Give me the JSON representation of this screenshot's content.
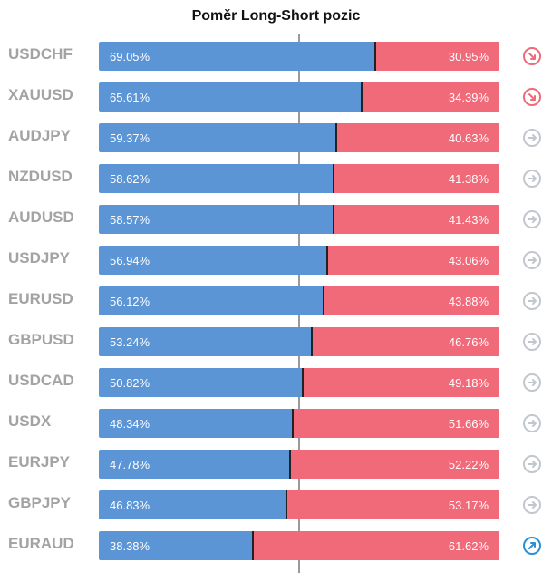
{
  "chart_data": {
    "type": "bar",
    "title": "Poměr Long-Short pozic",
    "categories": [
      "USDCHF",
      "XAUUSD",
      "AUDJPY",
      "NZDUSD",
      "AUDUSD",
      "USDJPY",
      "EURUSD",
      "GBPUSD",
      "USDCAD",
      "USDX",
      "EURJPY",
      "GBPJPY",
      "EURAUD"
    ],
    "series": [
      {
        "values": [
          69.05,
          65.61,
          59.37,
          58.62,
          58.57,
          56.94,
          56.12,
          53.24,
          50.82,
          48.34,
          47.78,
          46.83,
          38.38
        ]
      },
      {
        "values": [
          30.95,
          34.39,
          40.63,
          41.38,
          41.43,
          43.06,
          43.88,
          46.76,
          49.18,
          51.66,
          52.22,
          53.17,
          61.62
        ]
      }
    ],
    "long_labels": [
      "69.05%",
      "65.61%",
      "59.37%",
      "58.62%",
      "58.57%",
      "56.94%",
      "56.12%",
      "53.24%",
      "50.82%",
      "48.34%",
      "47.78%",
      "46.83%",
      "38.38%"
    ],
    "short_labels": [
      "30.95%",
      "34.39%",
      "40.63%",
      "41.38%",
      "41.43%",
      "43.06%",
      "43.88%",
      "46.76%",
      "49.18%",
      "51.66%",
      "52.22%",
      "53.17%",
      "61.62%"
    ],
    "trend_icons": [
      "arrow-down-right-icon",
      "arrow-down-right-icon",
      "arrow-right-icon",
      "arrow-right-icon",
      "arrow-right-icon",
      "arrow-right-icon",
      "arrow-right-icon",
      "arrow-right-icon",
      "arrow-right-icon",
      "arrow-right-icon",
      "arrow-right-icon",
      "arrow-right-icon",
      "arrow-up-right-icon"
    ],
    "colors": {
      "long": "#5c95d6",
      "short": "#f06a79",
      "down": "#f06a79",
      "neutral": "#c2c7cd",
      "up": "#2b8fd6"
    },
    "xlim": [
      0,
      100
    ],
    "stacked": true,
    "grid": false
  }
}
